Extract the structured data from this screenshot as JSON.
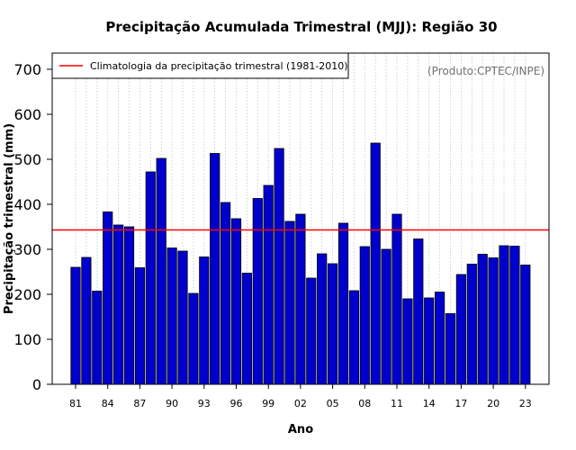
{
  "chart_data": {
    "type": "bar",
    "title": "Precipitação Acumulada Trimestral (MJJ): Região 30",
    "xlabel": "Ano",
    "ylabel": "Precipitação trimestral (mm)",
    "ylim": [
      0,
      700
    ],
    "yticks": [
      0,
      100,
      200,
      300,
      400,
      500,
      600,
      700
    ],
    "categories": [
      "81",
      "82",
      "83",
      "84",
      "85",
      "86",
      "87",
      "88",
      "89",
      "90",
      "91",
      "92",
      "93",
      "94",
      "95",
      "96",
      "97",
      "98",
      "99",
      "00",
      "01",
      "02",
      "03",
      "04",
      "05",
      "06",
      "07",
      "08",
      "09",
      "10",
      "11",
      "12",
      "13",
      "14",
      "15",
      "16",
      "17",
      "18",
      "19",
      "20",
      "21",
      "22",
      "23"
    ],
    "xtick_labels": [
      "81",
      "84",
      "87",
      "90",
      "93",
      "96",
      "99",
      "02",
      "05",
      "08",
      "11",
      "14",
      "17",
      "20",
      "23"
    ],
    "values": [
      260,
      282,
      207,
      383,
      354,
      350,
      259,
      472,
      502,
      303,
      296,
      202,
      283,
      513,
      404,
      368,
      247,
      413,
      442,
      524,
      362,
      378,
      236,
      290,
      268,
      358,
      208,
      306,
      536,
      300,
      378,
      190,
      323,
      192,
      205,
      157,
      244,
      267,
      289,
      281,
      308,
      307,
      265
    ],
    "bar_color": "#0000cd",
    "reference_line": {
      "label": "Climatologia da precipitação trimestral (1981-2010)",
      "value": 343,
      "color": "#ff0000"
    },
    "legend_position": "top-left",
    "grid": "vertical dotted",
    "annotation": "(Produto:CPTEC/INPE)"
  }
}
